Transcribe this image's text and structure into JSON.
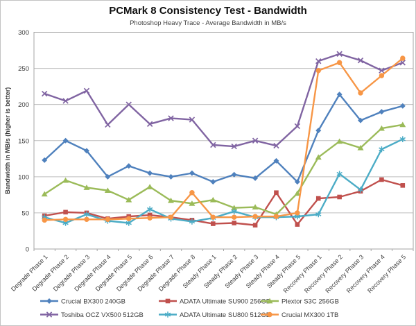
{
  "chart_data": {
    "type": "line",
    "title": "PCMark 8 Consistency Test - Bandwidth",
    "subtitle": "Photoshop Heavy Trace - Average Bandwidth in MB/s",
    "xlabel": "",
    "ylabel": "Bandwidth in MB/s (higher is better)",
    "ylim": [
      0,
      300
    ],
    "yticks": [
      0,
      50,
      100,
      150,
      200,
      250,
      300
    ],
    "grid": true,
    "legend_position": "bottom",
    "categories": [
      "Degrade Phase 1",
      "Degrade Phase 2",
      "Degrade Phase 3",
      "Degrade Phase 4",
      "Degrade Phase 5",
      "Degrade Phase 6",
      "Degrade Phase 7",
      "Degrade Phase 8",
      "Steady Phase 1",
      "Steady Phase 2",
      "Steady Phase 3",
      "Steady Phase 4",
      "Steady Phase 5",
      "Recovery Phase 1",
      "Recovery Phase 2",
      "Recovery Phase 3",
      "Recovery Phase 4",
      "Recovery Phase 5"
    ],
    "series": [
      {
        "name": "Crucial BX300 240GB",
        "color": "#4F81BD",
        "marker": "diamond",
        "values": [
          123,
          150,
          136,
          100,
          115,
          105,
          100,
          105,
          93,
          103,
          98,
          122,
          93,
          164,
          214,
          178,
          190,
          198
        ]
      },
      {
        "name": "ADATA Ultimate SU900 256GB",
        "color": "#C0504D",
        "marker": "square",
        "values": [
          46,
          51,
          50,
          42,
          45,
          47,
          44,
          40,
          35,
          36,
          33,
          78,
          34,
          70,
          72,
          80,
          96,
          88
        ]
      },
      {
        "name": "Plextor S3C 256GB",
        "color": "#9BBB59",
        "marker": "triangle",
        "values": [
          76,
          95,
          85,
          81,
          68,
          86,
          67,
          63,
          68,
          57,
          58,
          48,
          77,
          127,
          149,
          140,
          167,
          172
        ]
      },
      {
        "name": "Toshiba OCZ VX500 512GB",
        "color": "#8064A2",
        "marker": "x",
        "values": [
          215,
          205,
          219,
          172,
          200,
          173,
          181,
          179,
          144,
          142,
          150,
          143,
          170,
          260,
          270,
          261,
          247,
          258
        ]
      },
      {
        "name": "ADATA Ultimate SU800 512GB",
        "color": "#4BACC6",
        "marker": "asterisk",
        "values": [
          44,
          36,
          48,
          39,
          36,
          55,
          42,
          38,
          43,
          52,
          44,
          44,
          45,
          48,
          104,
          82,
          138,
          152
        ]
      },
      {
        "name": "Crucial MX300 1TB",
        "color": "#F79646",
        "marker": "circle",
        "values": [
          40,
          41,
          41,
          41,
          42,
          43,
          44,
          78,
          44,
          44,
          45,
          45,
          50,
          247,
          258,
          216,
          240,
          264
        ]
      }
    ]
  },
  "style_colors": {
    "gridline": "#BDBDBD",
    "axis_box": "#A6A6A6",
    "tick_label": "#3A3A3A"
  }
}
